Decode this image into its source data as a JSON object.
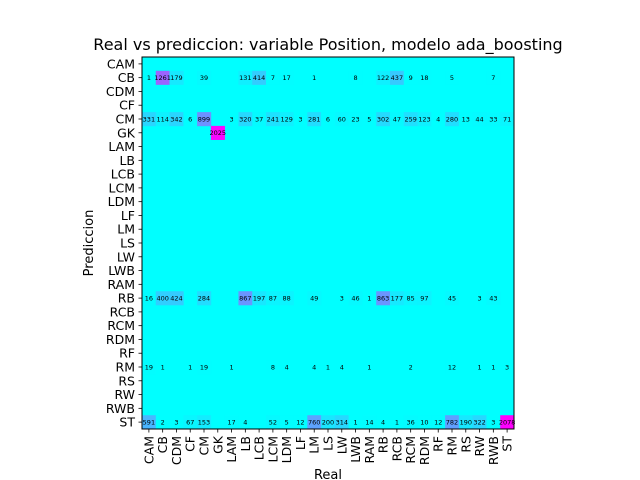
{
  "chart_data": {
    "type": "heatmap",
    "title": "Real vs prediccion: variable Position, modelo ada_boosting",
    "xlabel": "Real",
    "ylabel": "Prediccion",
    "x_categories": [
      "CAM",
      "CB",
      "CDM",
      "CF",
      "CM",
      "GK",
      "LAM",
      "LB",
      "LCB",
      "LCM",
      "LDM",
      "LF",
      "LM",
      "LS",
      "LW",
      "LWB",
      "RAM",
      "RB",
      "RCB",
      "RCM",
      "RDM",
      "RF",
      "RM",
      "RS",
      "RW",
      "RWB",
      "ST"
    ],
    "y_categories": [
      "CAM",
      "CB",
      "CDM",
      "CF",
      "CM",
      "GK",
      "LAM",
      "LB",
      "LCB",
      "LCM",
      "LDM",
      "LF",
      "LM",
      "LS",
      "LW",
      "LWB",
      "RAM",
      "RB",
      "RCB",
      "RCM",
      "RDM",
      "RF",
      "RM",
      "RS",
      "RW",
      "RWB",
      "ST"
    ],
    "colormap": "cool",
    "cells": [
      {
        "pred": "CB",
        "real": "CAM",
        "value": 1
      },
      {
        "pred": "CB",
        "real": "CB",
        "value": 1261
      },
      {
        "pred": "CB",
        "real": "CDM",
        "value": 179
      },
      {
        "pred": "CB",
        "real": "CM",
        "value": 39
      },
      {
        "pred": "CB",
        "real": "LB",
        "value": 131
      },
      {
        "pred": "CB",
        "real": "LCB",
        "value": 414
      },
      {
        "pred": "CB",
        "real": "LCM",
        "value": 7
      },
      {
        "pred": "CB",
        "real": "LDM",
        "value": 17
      },
      {
        "pred": "CB",
        "real": "LM",
        "value": 1
      },
      {
        "pred": "CB",
        "real": "LWB",
        "value": 8
      },
      {
        "pred": "CB",
        "real": "RB",
        "value": 122
      },
      {
        "pred": "CB",
        "real": "RCB",
        "value": 437
      },
      {
        "pred": "CB",
        "real": "RCM",
        "value": 9
      },
      {
        "pred": "CB",
        "real": "RDM",
        "value": 18
      },
      {
        "pred": "CB",
        "real": "RM",
        "value": 5
      },
      {
        "pred": "CB",
        "real": "RWB",
        "value": 7
      },
      {
        "pred": "CM",
        "real": "CAM",
        "value": 331
      },
      {
        "pred": "CM",
        "real": "CB",
        "value": 114
      },
      {
        "pred": "CM",
        "real": "CDM",
        "value": 342
      },
      {
        "pred": "CM",
        "real": "CF",
        "value": 6
      },
      {
        "pred": "CM",
        "real": "CM",
        "value": 899
      },
      {
        "pred": "CM",
        "real": "LAM",
        "value": 3
      },
      {
        "pred": "CM",
        "real": "LB",
        "value": 320
      },
      {
        "pred": "CM",
        "real": "LCB",
        "value": 37
      },
      {
        "pred": "CM",
        "real": "LCM",
        "value": 241
      },
      {
        "pred": "CM",
        "real": "LDM",
        "value": 129
      },
      {
        "pred": "CM",
        "real": "LF",
        "value": 3
      },
      {
        "pred": "CM",
        "real": "LM",
        "value": 281
      },
      {
        "pred": "CM",
        "real": "LS",
        "value": 6
      },
      {
        "pred": "CM",
        "real": "LW",
        "value": 60
      },
      {
        "pred": "CM",
        "real": "LWB",
        "value": 23
      },
      {
        "pred": "CM",
        "real": "RAM",
        "value": 5
      },
      {
        "pred": "CM",
        "real": "RB",
        "value": 302
      },
      {
        "pred": "CM",
        "real": "RCB",
        "value": 47
      },
      {
        "pred": "CM",
        "real": "RCM",
        "value": 259
      },
      {
        "pred": "CM",
        "real": "RDM",
        "value": 123
      },
      {
        "pred": "CM",
        "real": "RF",
        "value": 4
      },
      {
        "pred": "CM",
        "real": "RM",
        "value": 280
      },
      {
        "pred": "CM",
        "real": "RS",
        "value": 13
      },
      {
        "pred": "CM",
        "real": "RW",
        "value": 44
      },
      {
        "pred": "CM",
        "real": "RWB",
        "value": 33
      },
      {
        "pred": "CM",
        "real": "ST",
        "value": 71
      },
      {
        "pred": "GK",
        "real": "GK",
        "value": 2025
      },
      {
        "pred": "RB",
        "real": "CAM",
        "value": 16
      },
      {
        "pred": "RB",
        "real": "CB",
        "value": 400
      },
      {
        "pred": "RB",
        "real": "CDM",
        "value": 424
      },
      {
        "pred": "RB",
        "real": "CM",
        "value": 284
      },
      {
        "pred": "RB",
        "real": "LB",
        "value": 867
      },
      {
        "pred": "RB",
        "real": "LCB",
        "value": 197
      },
      {
        "pred": "RB",
        "real": "LCM",
        "value": 87
      },
      {
        "pred": "RB",
        "real": "LDM",
        "value": 88
      },
      {
        "pred": "RB",
        "real": "LM",
        "value": 49
      },
      {
        "pred": "RB",
        "real": "LW",
        "value": 3
      },
      {
        "pred": "RB",
        "real": "LWB",
        "value": 46
      },
      {
        "pred": "RB",
        "real": "RAM",
        "value": 1
      },
      {
        "pred": "RB",
        "real": "RB",
        "value": 863
      },
      {
        "pred": "RB",
        "real": "RCB",
        "value": 177
      },
      {
        "pred": "RB",
        "real": "RCM",
        "value": 85
      },
      {
        "pred": "RB",
        "real": "RDM",
        "value": 97
      },
      {
        "pred": "RB",
        "real": "RM",
        "value": 45
      },
      {
        "pred": "RB",
        "real": "RW",
        "value": 3
      },
      {
        "pred": "RB",
        "real": "RWB",
        "value": 43
      },
      {
        "pred": "RM",
        "real": "CAM",
        "value": 19
      },
      {
        "pred": "RM",
        "real": "CB",
        "value": 1
      },
      {
        "pred": "RM",
        "real": "CF",
        "value": 1
      },
      {
        "pred": "RM",
        "real": "CM",
        "value": 19
      },
      {
        "pred": "RM",
        "real": "LAM",
        "value": 1
      },
      {
        "pred": "RM",
        "real": "LCM",
        "value": 8
      },
      {
        "pred": "RM",
        "real": "LDM",
        "value": 4
      },
      {
        "pred": "RM",
        "real": "LM",
        "value": 4
      },
      {
        "pred": "RM",
        "real": "LS",
        "value": 1
      },
      {
        "pred": "RM",
        "real": "LW",
        "value": 4
      },
      {
        "pred": "RM",
        "real": "RAM",
        "value": 1
      },
      {
        "pred": "RM",
        "real": "RCM",
        "value": 2
      },
      {
        "pred": "RM",
        "real": "RM",
        "value": 12
      },
      {
        "pred": "RM",
        "real": "RW",
        "value": 1
      },
      {
        "pred": "RM",
        "real": "RWB",
        "value": 1
      },
      {
        "pred": "RM",
        "real": "ST",
        "value": 3
      },
      {
        "pred": "ST",
        "real": "CAM",
        "value": 591
      },
      {
        "pred": "ST",
        "real": "CB",
        "value": 2
      },
      {
        "pred": "ST",
        "real": "CDM",
        "value": 3
      },
      {
        "pred": "ST",
        "real": "CF",
        "value": 67
      },
      {
        "pred": "ST",
        "real": "CM",
        "value": 153
      },
      {
        "pred": "ST",
        "real": "LAM",
        "value": 17
      },
      {
        "pred": "ST",
        "real": "LB",
        "value": 4
      },
      {
        "pred": "ST",
        "real": "LCM",
        "value": 52
      },
      {
        "pred": "ST",
        "real": "LDM",
        "value": 5
      },
      {
        "pred": "ST",
        "real": "LF",
        "value": 12
      },
      {
        "pred": "ST",
        "real": "LM",
        "value": 760
      },
      {
        "pred": "ST",
        "real": "LS",
        "value": 200
      },
      {
        "pred": "ST",
        "real": "LW",
        "value": 314
      },
      {
        "pred": "ST",
        "real": "LWB",
        "value": 1
      },
      {
        "pred": "ST",
        "real": "RAM",
        "value": 14
      },
      {
        "pred": "ST",
        "real": "RB",
        "value": 4
      },
      {
        "pred": "ST",
        "real": "RCB",
        "value": 1
      },
      {
        "pred": "ST",
        "real": "RCM",
        "value": 36
      },
      {
        "pred": "ST",
        "real": "RDM",
        "value": 10
      },
      {
        "pred": "ST",
        "real": "RF",
        "value": 12
      },
      {
        "pred": "ST",
        "real": "RM",
        "value": 782
      },
      {
        "pred": "ST",
        "real": "RS",
        "value": 190
      },
      {
        "pred": "ST",
        "real": "RW",
        "value": 322
      },
      {
        "pred": "ST",
        "real": "RWB",
        "value": 3
      },
      {
        "pred": "ST",
        "real": "ST",
        "value": 2078
      }
    ]
  }
}
